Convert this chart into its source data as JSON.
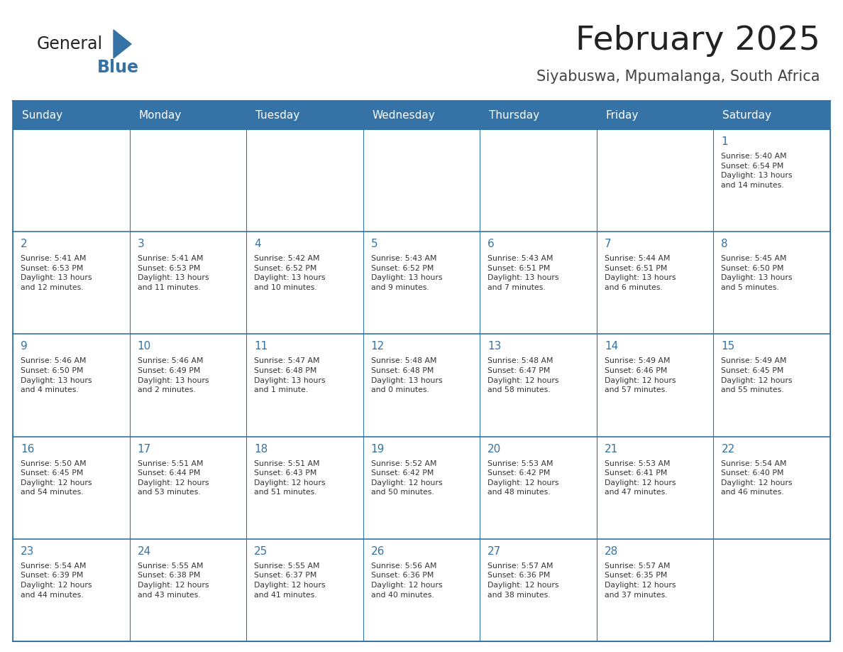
{
  "title": "February 2025",
  "subtitle": "Siyabuswa, Mpumalanga, South Africa",
  "header_color": "#3572a5",
  "header_text_color": "#ffffff",
  "border_color": "#3572a5",
  "day_headers": [
    "Sunday",
    "Monday",
    "Tuesday",
    "Wednesday",
    "Thursday",
    "Friday",
    "Saturday"
  ],
  "title_color": "#222222",
  "subtitle_color": "#444444",
  "day_number_color": "#3572a5",
  "info_color": "#333333",
  "logo_general_color": "#222222",
  "logo_blue_color": "#3572a5",
  "weeks": [
    [
      {
        "day": null,
        "info": ""
      },
      {
        "day": null,
        "info": ""
      },
      {
        "day": null,
        "info": ""
      },
      {
        "day": null,
        "info": ""
      },
      {
        "day": null,
        "info": ""
      },
      {
        "day": null,
        "info": ""
      },
      {
        "day": 1,
        "info": "Sunrise: 5:40 AM\nSunset: 6:54 PM\nDaylight: 13 hours\nand 14 minutes."
      }
    ],
    [
      {
        "day": 2,
        "info": "Sunrise: 5:41 AM\nSunset: 6:53 PM\nDaylight: 13 hours\nand 12 minutes."
      },
      {
        "day": 3,
        "info": "Sunrise: 5:41 AM\nSunset: 6:53 PM\nDaylight: 13 hours\nand 11 minutes."
      },
      {
        "day": 4,
        "info": "Sunrise: 5:42 AM\nSunset: 6:52 PM\nDaylight: 13 hours\nand 10 minutes."
      },
      {
        "day": 5,
        "info": "Sunrise: 5:43 AM\nSunset: 6:52 PM\nDaylight: 13 hours\nand 9 minutes."
      },
      {
        "day": 6,
        "info": "Sunrise: 5:43 AM\nSunset: 6:51 PM\nDaylight: 13 hours\nand 7 minutes."
      },
      {
        "day": 7,
        "info": "Sunrise: 5:44 AM\nSunset: 6:51 PM\nDaylight: 13 hours\nand 6 minutes."
      },
      {
        "day": 8,
        "info": "Sunrise: 5:45 AM\nSunset: 6:50 PM\nDaylight: 13 hours\nand 5 minutes."
      }
    ],
    [
      {
        "day": 9,
        "info": "Sunrise: 5:46 AM\nSunset: 6:50 PM\nDaylight: 13 hours\nand 4 minutes."
      },
      {
        "day": 10,
        "info": "Sunrise: 5:46 AM\nSunset: 6:49 PM\nDaylight: 13 hours\nand 2 minutes."
      },
      {
        "day": 11,
        "info": "Sunrise: 5:47 AM\nSunset: 6:48 PM\nDaylight: 13 hours\nand 1 minute."
      },
      {
        "day": 12,
        "info": "Sunrise: 5:48 AM\nSunset: 6:48 PM\nDaylight: 13 hours\nand 0 minutes."
      },
      {
        "day": 13,
        "info": "Sunrise: 5:48 AM\nSunset: 6:47 PM\nDaylight: 12 hours\nand 58 minutes."
      },
      {
        "day": 14,
        "info": "Sunrise: 5:49 AM\nSunset: 6:46 PM\nDaylight: 12 hours\nand 57 minutes."
      },
      {
        "day": 15,
        "info": "Sunrise: 5:49 AM\nSunset: 6:45 PM\nDaylight: 12 hours\nand 55 minutes."
      }
    ],
    [
      {
        "day": 16,
        "info": "Sunrise: 5:50 AM\nSunset: 6:45 PM\nDaylight: 12 hours\nand 54 minutes."
      },
      {
        "day": 17,
        "info": "Sunrise: 5:51 AM\nSunset: 6:44 PM\nDaylight: 12 hours\nand 53 minutes."
      },
      {
        "day": 18,
        "info": "Sunrise: 5:51 AM\nSunset: 6:43 PM\nDaylight: 12 hours\nand 51 minutes."
      },
      {
        "day": 19,
        "info": "Sunrise: 5:52 AM\nSunset: 6:42 PM\nDaylight: 12 hours\nand 50 minutes."
      },
      {
        "day": 20,
        "info": "Sunrise: 5:53 AM\nSunset: 6:42 PM\nDaylight: 12 hours\nand 48 minutes."
      },
      {
        "day": 21,
        "info": "Sunrise: 5:53 AM\nSunset: 6:41 PM\nDaylight: 12 hours\nand 47 minutes."
      },
      {
        "day": 22,
        "info": "Sunrise: 5:54 AM\nSunset: 6:40 PM\nDaylight: 12 hours\nand 46 minutes."
      }
    ],
    [
      {
        "day": 23,
        "info": "Sunrise: 5:54 AM\nSunset: 6:39 PM\nDaylight: 12 hours\nand 44 minutes."
      },
      {
        "day": 24,
        "info": "Sunrise: 5:55 AM\nSunset: 6:38 PM\nDaylight: 12 hours\nand 43 minutes."
      },
      {
        "day": 25,
        "info": "Sunrise: 5:55 AM\nSunset: 6:37 PM\nDaylight: 12 hours\nand 41 minutes."
      },
      {
        "day": 26,
        "info": "Sunrise: 5:56 AM\nSunset: 6:36 PM\nDaylight: 12 hours\nand 40 minutes."
      },
      {
        "day": 27,
        "info": "Sunrise: 5:57 AM\nSunset: 6:36 PM\nDaylight: 12 hours\nand 38 minutes."
      },
      {
        "day": 28,
        "info": "Sunrise: 5:57 AM\nSunset: 6:35 PM\nDaylight: 12 hours\nand 37 minutes."
      },
      {
        "day": null,
        "info": ""
      }
    ]
  ]
}
